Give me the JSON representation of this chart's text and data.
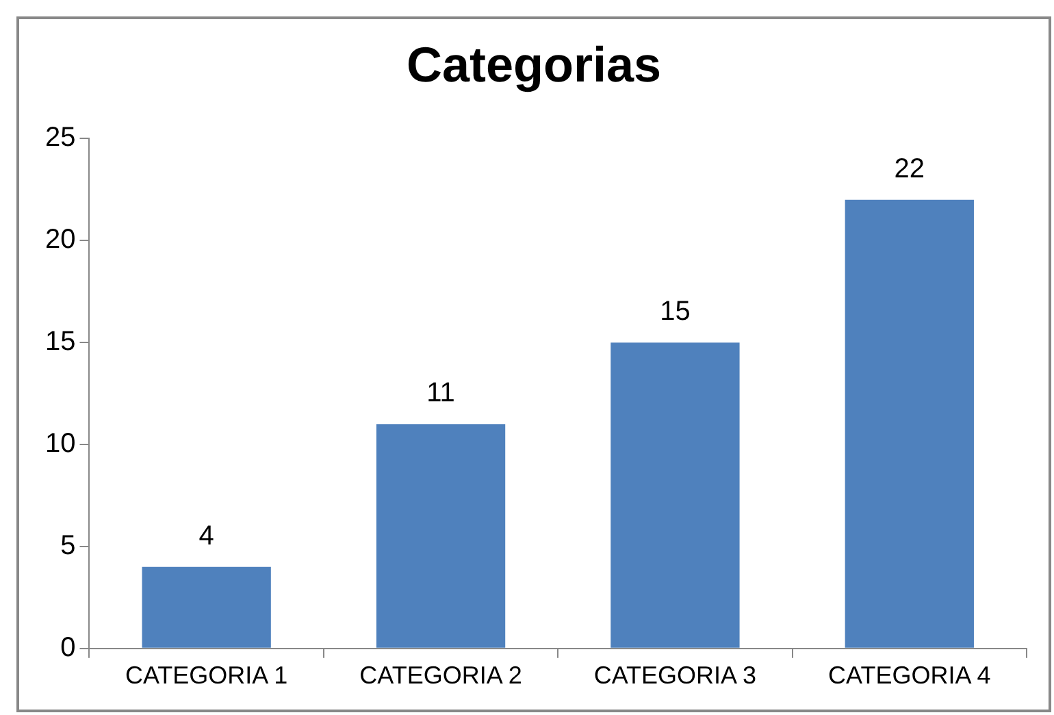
{
  "chart_data": {
    "type": "bar",
    "title": "Categorias",
    "categories": [
      "CATEGORIA 1",
      "CATEGORIA 2",
      "CATEGORIA 3",
      "CATEGORIA 4"
    ],
    "values": [
      4,
      11,
      15,
      22
    ],
    "color": "#4f81bd",
    "ylim": [
      0,
      25
    ],
    "yticks": [
      0,
      5,
      10,
      15,
      20,
      25
    ],
    "grid": false,
    "legend": false,
    "data_labels": true
  }
}
